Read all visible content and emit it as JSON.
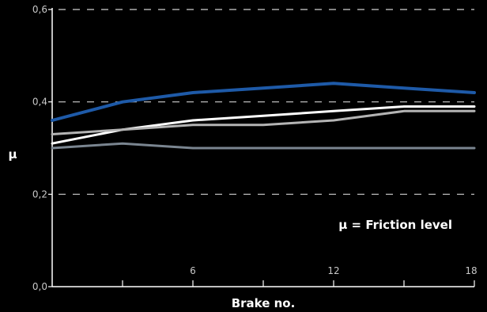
{
  "chart_data": {
    "type": "line",
    "xlabel": "Brake no.",
    "ylabel": "μ",
    "annotation": "μ = Friction level",
    "xlim": [
      0,
      18
    ],
    "ylim": [
      0,
      0.6
    ],
    "x_ticks": [
      6,
      12,
      18
    ],
    "x_minor_ticks": [
      3,
      6,
      9,
      12,
      15,
      18
    ],
    "y_ticks": [
      {
        "value": 0.0,
        "label": "0,0"
      },
      {
        "value": 0.2,
        "label": "0,2"
      },
      {
        "value": 0.4,
        "label": "0,4"
      },
      {
        "value": 0.6,
        "label": "0,6"
      }
    ],
    "grid": "horizontal-dashed",
    "x": [
      0,
      3,
      6,
      9,
      12,
      15,
      18
    ],
    "series": [
      {
        "color": "#1e5aa8",
        "width": 4,
        "values": [
          0.36,
          0.4,
          0.42,
          0.43,
          0.44,
          0.43,
          0.42
        ]
      },
      {
        "color": "#ffffff",
        "width": 3,
        "values": [
          0.31,
          0.34,
          0.36,
          0.37,
          0.38,
          0.39,
          0.39
        ]
      },
      {
        "color": "#b4b4b4",
        "width": 3,
        "values": [
          0.33,
          0.34,
          0.35,
          0.35,
          0.36,
          0.38,
          0.38
        ]
      },
      {
        "color": "#7a8590",
        "width": 3,
        "values": [
          0.3,
          0.31,
          0.3,
          0.3,
          0.3,
          0.3,
          0.3
        ]
      }
    ]
  }
}
